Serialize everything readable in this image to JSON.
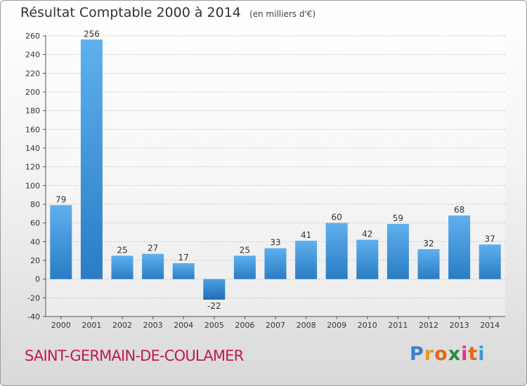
{
  "chart_data": {
    "type": "bar",
    "title": "Résultat Comptable 2000 à 2014",
    "subtitle": "(en milliers d'€)",
    "categories": [
      "2000",
      "2001",
      "2002",
      "2003",
      "2004",
      "2005",
      "2006",
      "2007",
      "2008",
      "2009",
      "2010",
      "2011",
      "2012",
      "2013",
      "2014"
    ],
    "values": [
      79,
      256,
      25,
      27,
      17,
      -22,
      25,
      33,
      41,
      60,
      42,
      59,
      32,
      68,
      37
    ],
    "yticks": [
      -40,
      -20,
      0,
      20,
      40,
      60,
      80,
      100,
      120,
      140,
      160,
      180,
      200,
      220,
      240,
      260
    ],
    "ylim": [
      -40,
      260
    ],
    "xlabel": "",
    "ylabel": "",
    "bar_color": "#3a8fd6"
  },
  "footer": {
    "town": "SAINT-GERMAIN-DE-COULAMER",
    "logo_letters": [
      "P",
      "r",
      "o",
      "x",
      "i",
      "t",
      "i"
    ],
    "logo_colors": [
      "#3a7fd0",
      "#e89a1a",
      "#e8661a",
      "#2a8a3a",
      "#d63a8a",
      "#e8661a",
      "#3a9ad6"
    ]
  }
}
